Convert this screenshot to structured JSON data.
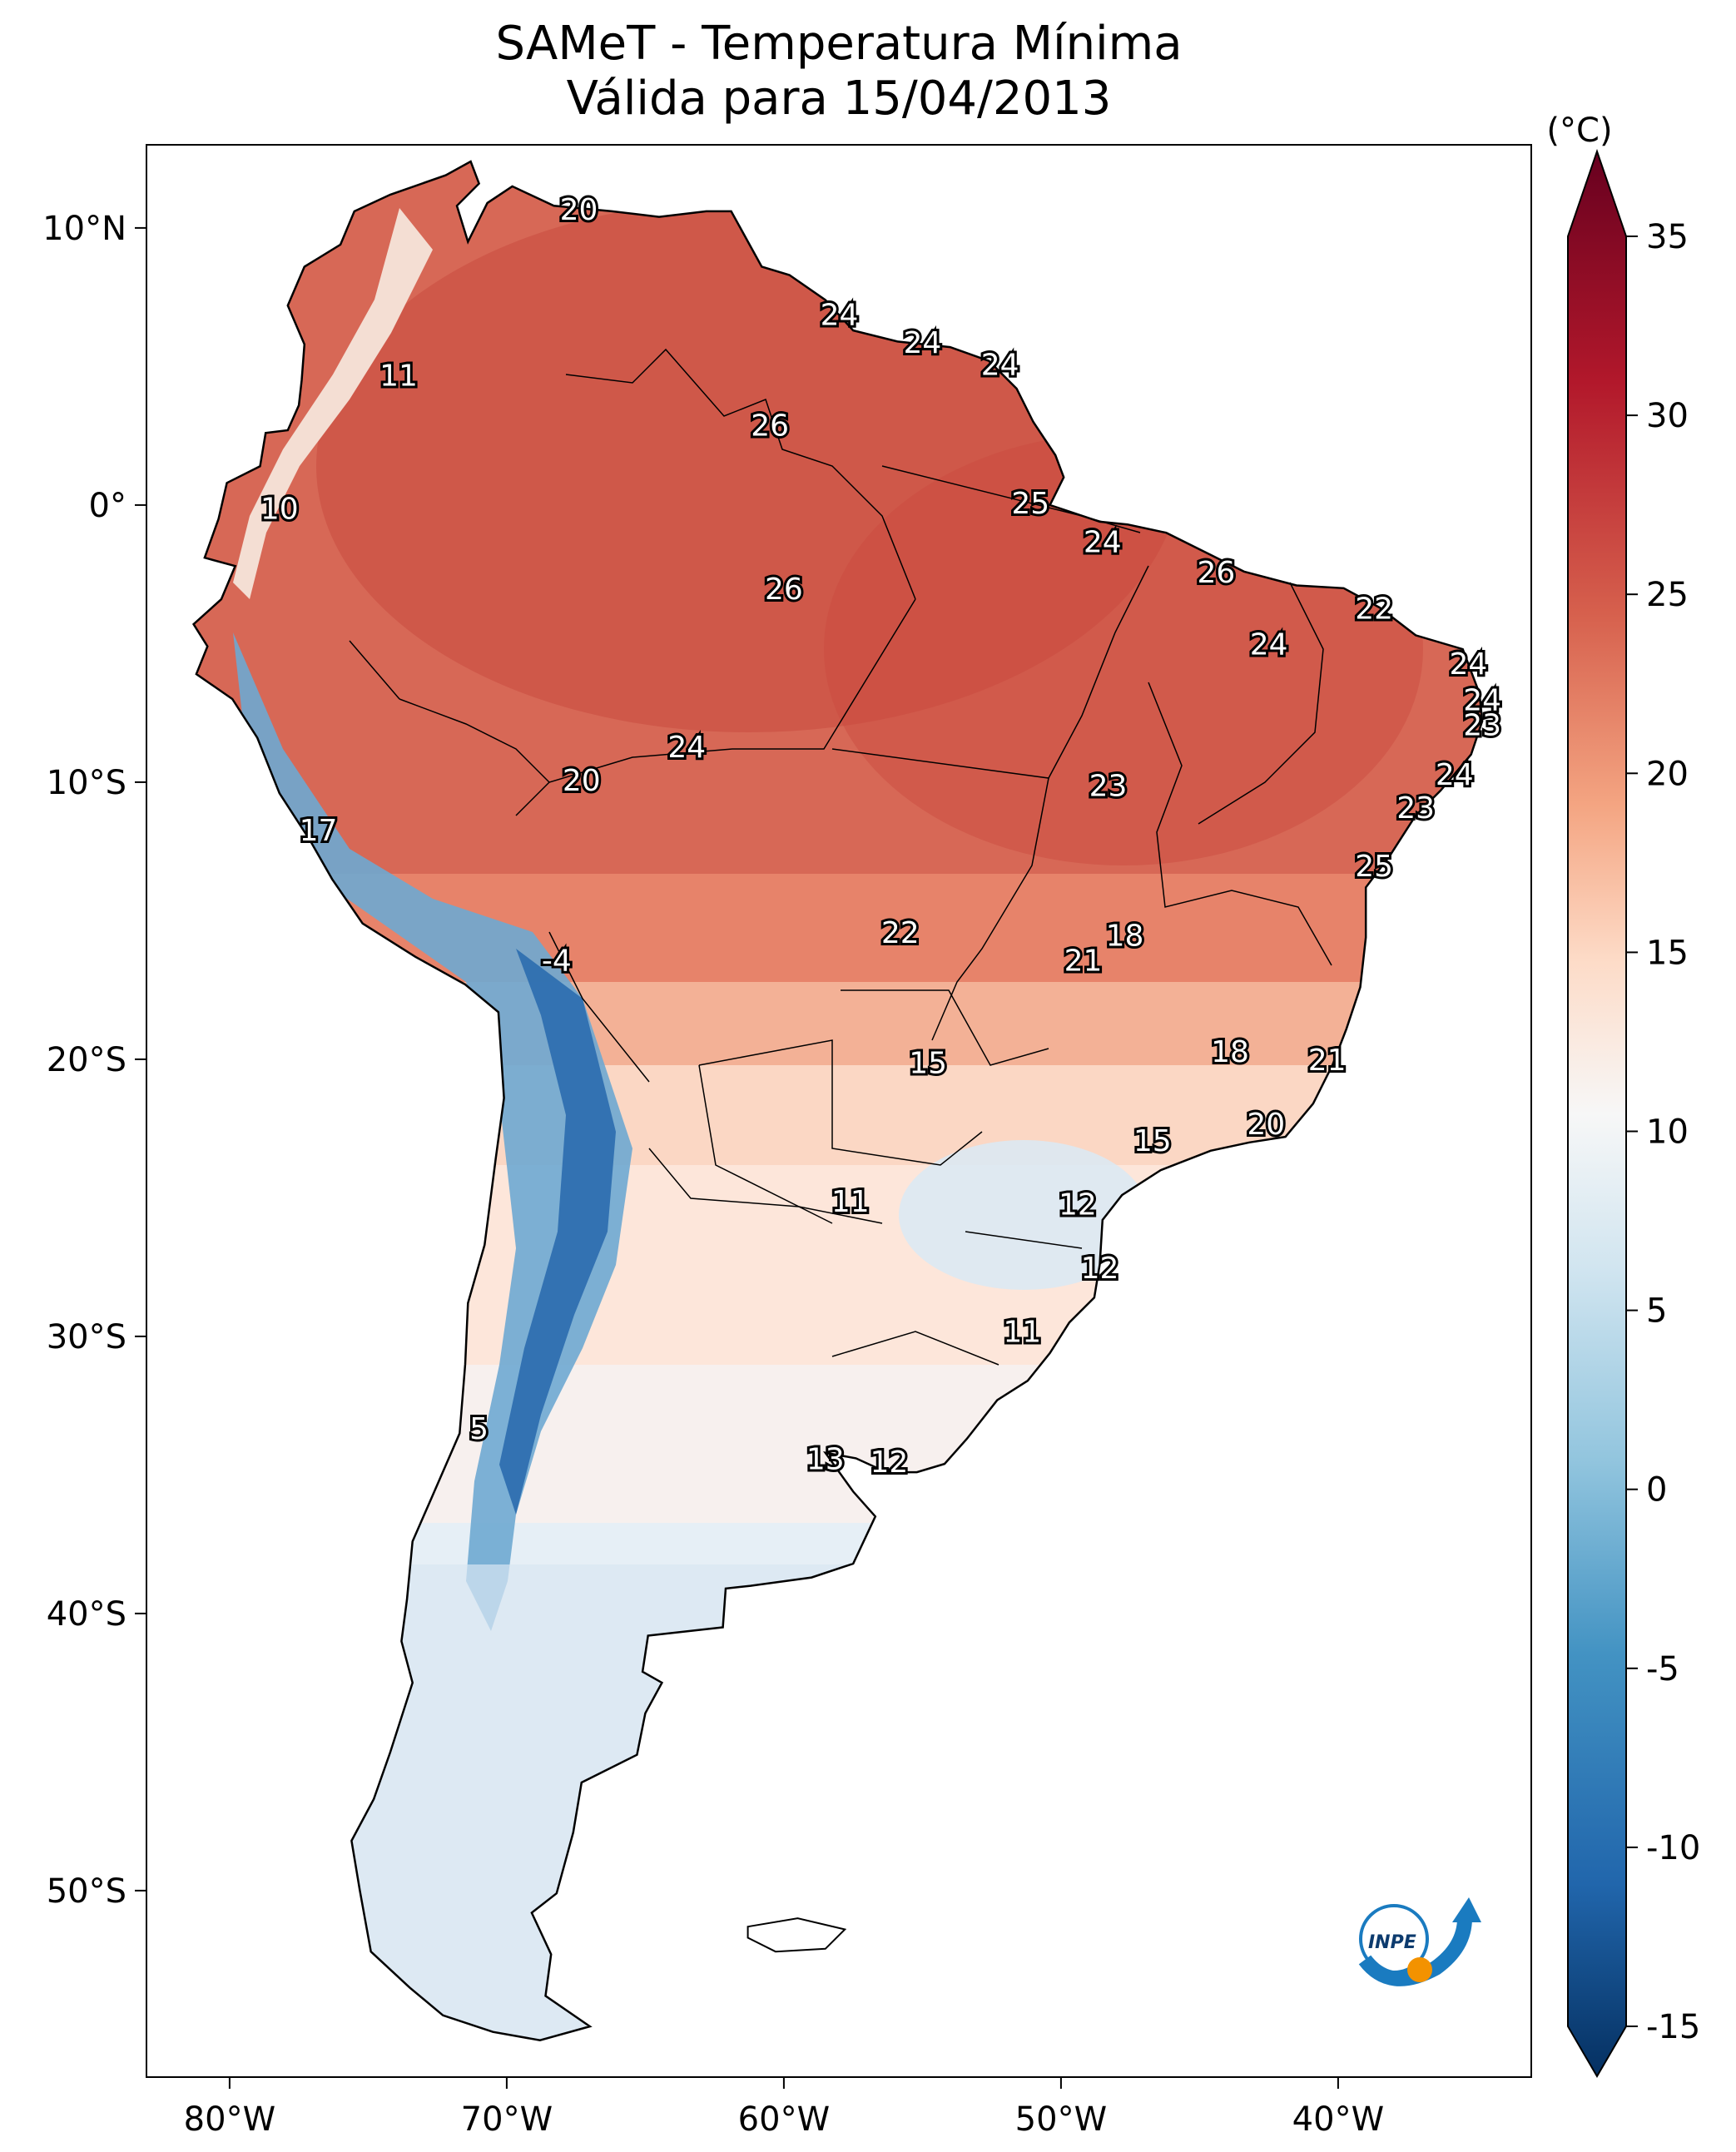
{
  "title_line1": "SAMeT - Temperatura Mínima",
  "title_line2": "Válida para 15/04/2013",
  "colorbar": {
    "unit": "(°C)",
    "min": -15,
    "max": 35,
    "ticks": [
      "35",
      "30",
      "25",
      "20",
      "15",
      "10",
      "5",
      "0",
      "-5",
      "-10",
      "-15"
    ],
    "colors": [
      "#053061",
      "#2166ac",
      "#4393c3",
      "#92c5de",
      "#d1e5f0",
      "#f7f7f7",
      "#fddbc7",
      "#f4a582",
      "#d6604d",
      "#b2182b",
      "#67001f"
    ]
  },
  "map": {
    "lon_ticks": [
      "80°W",
      "70°W",
      "60°W",
      "50°W",
      "40°W"
    ],
    "lat_ticks": [
      "10°N",
      "0°",
      "10°S",
      "20°S",
      "30°S",
      "40°S",
      "50°S"
    ]
  },
  "logo_text": "INPE",
  "labels": [
    {
      "t": "20",
      "lon": -67.4,
      "lat": 10.6
    },
    {
      "t": "11",
      "lon": -73.9,
      "lat": 4.6
    },
    {
      "t": "10",
      "lon": -78.2,
      "lat": -0.2
    },
    {
      "t": "17",
      "lon": -76.8,
      "lat": -11.8
    },
    {
      "t": "-4",
      "lon": -68.2,
      "lat": -16.5
    },
    {
      "t": "24",
      "lon": -58.0,
      "lat": 6.8
    },
    {
      "t": "24",
      "lon": -55.0,
      "lat": 5.8
    },
    {
      "t": "24",
      "lon": -52.2,
      "lat": 5.0
    },
    {
      "t": "26",
      "lon": -60.5,
      "lat": 2.8
    },
    {
      "t": "26",
      "lon": -60.0,
      "lat": -3.1
    },
    {
      "t": "25",
      "lon": -51.1,
      "lat": 0.0
    },
    {
      "t": "24",
      "lon": -48.5,
      "lat": -1.4
    },
    {
      "t": "26",
      "lon": -44.4,
      "lat": -2.5
    },
    {
      "t": "22",
      "lon": -38.7,
      "lat": -3.8
    },
    {
      "t": "24",
      "lon": -42.5,
      "lat": -5.1
    },
    {
      "t": "24",
      "lon": -35.3,
      "lat": -5.8
    },
    {
      "t": "24",
      "lon": -34.8,
      "lat": -7.1
    },
    {
      "t": "23",
      "lon": -34.8,
      "lat": -8.0
    },
    {
      "t": "24",
      "lon": -35.8,
      "lat": -9.8
    },
    {
      "t": "23",
      "lon": -37.2,
      "lat": -11.0
    },
    {
      "t": "25",
      "lon": -38.7,
      "lat": -13.1
    },
    {
      "t": "24",
      "lon": -63.5,
      "lat": -8.8
    },
    {
      "t": "20",
      "lon": -67.3,
      "lat": -10.0
    },
    {
      "t": "23",
      "lon": -48.3,
      "lat": -10.2
    },
    {
      "t": "22",
      "lon": -55.8,
      "lat": -15.5
    },
    {
      "t": "18",
      "lon": -47.7,
      "lat": -15.6
    },
    {
      "t": "21",
      "lon": -49.2,
      "lat": -16.5
    },
    {
      "t": "18",
      "lon": -43.9,
      "lat": -19.8
    },
    {
      "t": "21",
      "lon": -40.4,
      "lat": -20.1
    },
    {
      "t": "15",
      "lon": -54.8,
      "lat": -20.2
    },
    {
      "t": "20",
      "lon": -42.6,
      "lat": -22.4
    },
    {
      "t": "15",
      "lon": -46.7,
      "lat": -23.0
    },
    {
      "t": "11",
      "lon": -57.6,
      "lat": -25.2
    },
    {
      "t": "12",
      "lon": -49.4,
      "lat": -25.3
    },
    {
      "t": "12",
      "lon": -48.6,
      "lat": -27.6
    },
    {
      "t": "11",
      "lon": -51.4,
      "lat": -29.9
    },
    {
      "t": "5",
      "lon": -71.0,
      "lat": -33.4
    },
    {
      "t": "13",
      "lon": -58.5,
      "lat": -34.5
    },
    {
      "t": "12",
      "lon": -56.2,
      "lat": -34.6
    }
  ]
}
